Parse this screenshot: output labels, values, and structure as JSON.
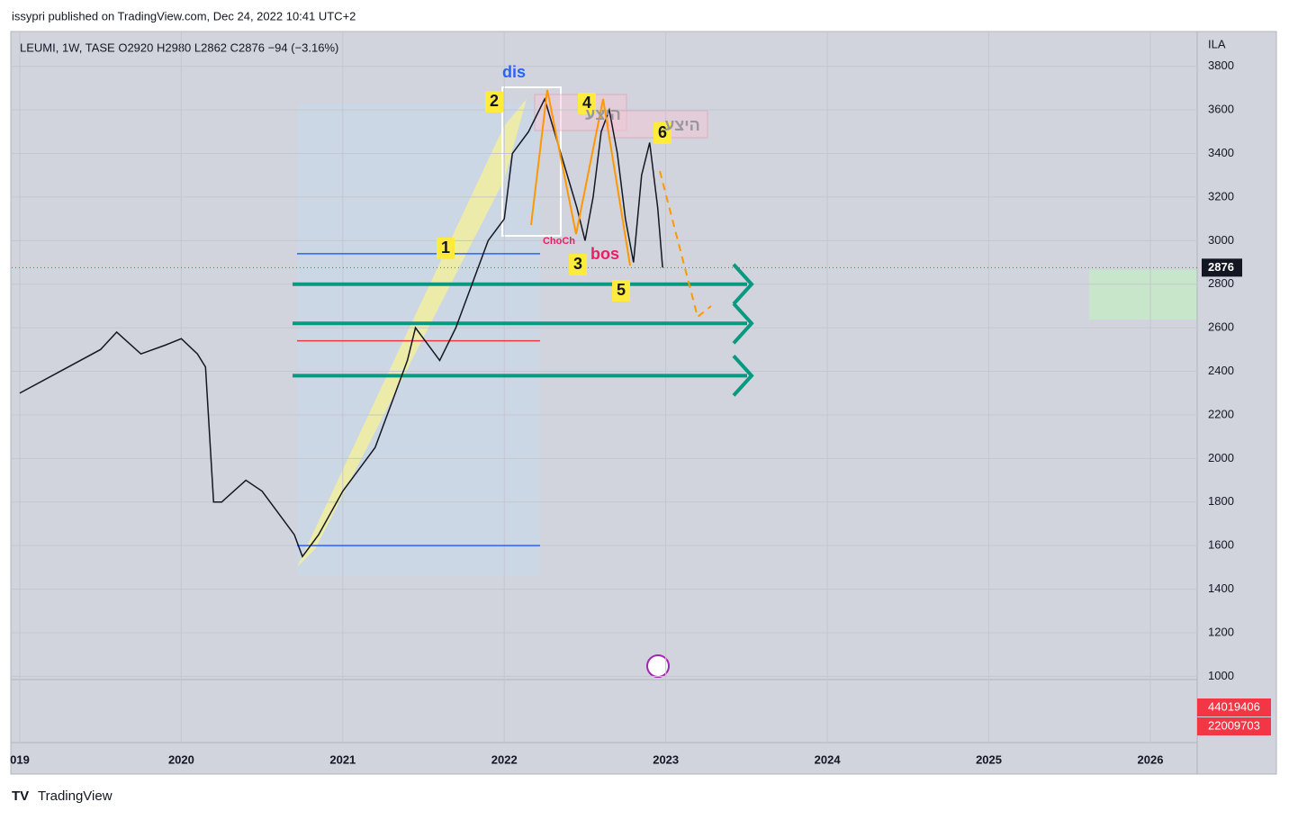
{
  "subtitle": "issypri published on TradingView.com, Dec 24, 2022 10:41 UTC+2",
  "brand": "TradingView",
  "chart_data": {
    "type": "line",
    "title": "LEUMI, 1W, TASE  O2920  H2980  L2862  C2876  −94 (−3.16%)",
    "currency": "ILA",
    "xlim": [
      2018.95,
      2026.29
    ],
    "xticks": [
      {
        "value": 2019,
        "label": "019"
      },
      2020,
      2021,
      2022,
      2023,
      2024,
      2025,
      2026
    ],
    "ylim": [
      985,
      3960
    ],
    "yticks": [
      1000,
      1200,
      1400,
      1600,
      1800,
      2000,
      2200,
      2400,
      2600,
      2800,
      3000,
      3200,
      3400,
      3600,
      3800
    ],
    "grid": true,
    "series": [
      {
        "name": "LEUMI",
        "color": "#131722",
        "x": [
          2019.0,
          2019.25,
          2019.5,
          2019.6,
          2019.75,
          2019.9,
          2020.0,
          2020.1,
          2020.15,
          2020.2,
          2020.25,
          2020.4,
          2020.5,
          2020.6,
          2020.7,
          2020.75,
          2020.85,
          2021.0,
          2021.1,
          2021.2,
          2021.3,
          2021.4,
          2021.45,
          2021.55,
          2021.6,
          2021.7,
          2021.8,
          2021.9,
          2022.0,
          2022.05,
          2022.15,
          2022.25,
          2022.35,
          2022.45,
          2022.5,
          2022.55,
          2022.6,
          2022.65,
          2022.7,
          2022.75,
          2022.8,
          2022.85,
          2022.9,
          2022.95,
          2022.98
        ],
        "values": [
          2300,
          2400,
          2500,
          2580,
          2480,
          2520,
          2550,
          2480,
          2420,
          1800,
          1800,
          1900,
          1850,
          1750,
          1650,
          1550,
          1650,
          1850,
          1950,
          2050,
          2250,
          2450,
          2600,
          2500,
          2450,
          2600,
          2800,
          3000,
          3100,
          3400,
          3500,
          3650,
          3400,
          3150,
          3000,
          3200,
          3500,
          3600,
          3400,
          3100,
          2900,
          3300,
          3450,
          3150,
          2876
        ]
      }
    ],
    "levels": [
      {
        "color": "#089981",
        "value": 2800
      },
      {
        "color": "#089981",
        "value": 2620
      },
      {
        "color": "#089981",
        "value": 2380
      },
      {
        "color": "#2962ff",
        "value": 2940
      },
      {
        "color": "#2962ff",
        "value": 1600
      },
      {
        "color": "#f23645",
        "value": 2540
      }
    ],
    "volume_labels": [
      44019406,
      22009703
    ],
    "annotations": [
      "dis",
      "2",
      "4",
      "6",
      "1",
      "3",
      "5",
      "bos",
      "ChoCh",
      "היצע",
      "היצע"
    ]
  }
}
